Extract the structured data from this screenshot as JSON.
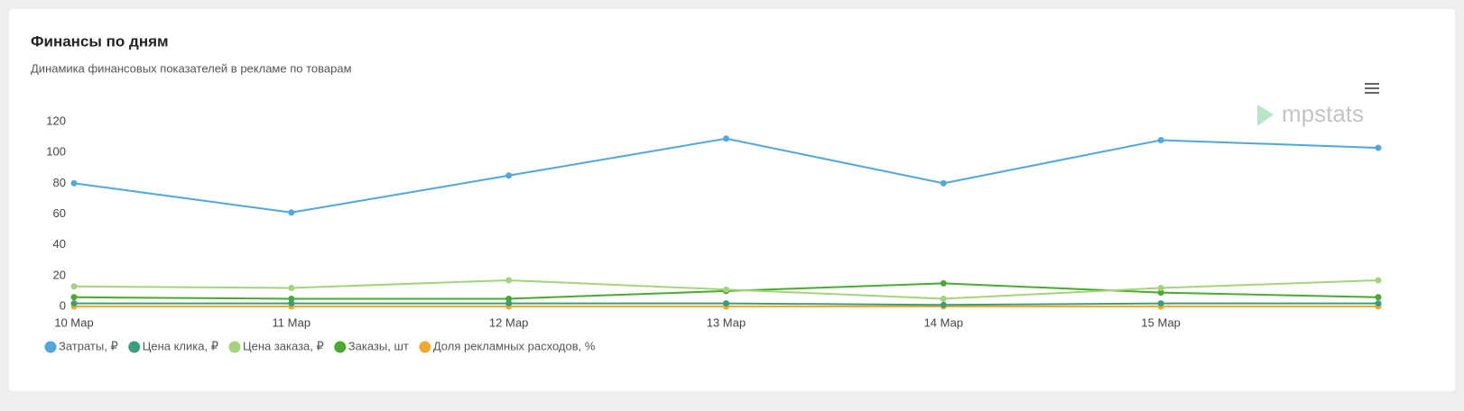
{
  "chart_data": {
    "type": "line",
    "title": "Финансы по дням",
    "subtitle": "Динамика финансовых показателей в рекламе по товарам",
    "categories": [
      "10 Мар",
      "11 Мар",
      "12 Мар",
      "13 Мар",
      "14 Мар",
      "15 Мар",
      null
    ],
    "series": [
      {
        "name": "Затраты, ₽",
        "color": "#4ea8de",
        "values": [
          80,
          61,
          85,
          109,
          80,
          108,
          103
        ]
      },
      {
        "name": "Цена клика, ₽",
        "color": "#3a9e7e",
        "values": [
          2,
          2,
          2,
          2,
          1,
          2,
          2
        ]
      },
      {
        "name": "Цена заказа, ₽",
        "color": "#a3d37a",
        "values": [
          13,
          12,
          17,
          11,
          5,
          12,
          17
        ]
      },
      {
        "name": "Заказы, шт",
        "color": "#4aaa2e",
        "values": [
          6,
          5,
          5,
          10,
          15,
          9,
          6
        ]
      },
      {
        "name": "Доля рекламных расходов, %",
        "color": "#f0ab2e",
        "values": [
          0,
          0,
          0,
          0,
          0,
          0,
          0
        ]
      }
    ],
    "ylim": [
      0,
      120
    ],
    "yticks": [
      0,
      20,
      40,
      60,
      80,
      100,
      120
    ],
    "grid": false
  },
  "branding": {
    "logo": "mpstats"
  }
}
